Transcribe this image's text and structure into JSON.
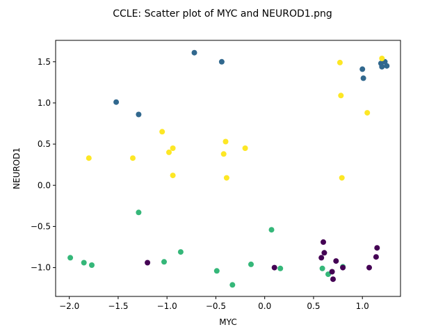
{
  "chart_data": {
    "type": "scatter",
    "title": "CCLE: Scatter plot of MYC and NEUROD1.png",
    "xlabel": "MYC",
    "ylabel": "NEUROD1",
    "xlim": [
      -2.14,
      1.39
    ],
    "ylim": [
      -1.35,
      1.76
    ],
    "xticks": [
      -2.0,
      -1.5,
      -1.0,
      -0.5,
      0.0,
      0.5,
      1.0
    ],
    "xtick_labels": [
      "−2.0",
      "−1.5",
      "−1.0",
      "−0.5",
      "0.0",
      "0.5",
      "1.0"
    ],
    "yticks": [
      -1.0,
      -0.5,
      0.0,
      0.5,
      1.0,
      1.5
    ],
    "ytick_labels": [
      "−1.0",
      "−0.5",
      "0.0",
      "0.5",
      "1.0",
      "1.5"
    ],
    "grid": false,
    "series": [
      {
        "color": "#31688e",
        "points": [
          [
            -0.72,
            1.61
          ],
          [
            -0.44,
            1.5
          ],
          [
            -1.52,
            1.01
          ],
          [
            -1.29,
            0.86
          ],
          [
            1.0,
            1.41
          ],
          [
            1.01,
            1.3
          ],
          [
            1.19,
            1.48
          ],
          [
            1.2,
            1.44
          ],
          [
            1.23,
            1.5
          ],
          [
            1.25,
            1.45
          ]
        ]
      },
      {
        "color": "#fde725",
        "points": [
          [
            0.77,
            1.49
          ],
          [
            1.2,
            1.54
          ],
          [
            0.78,
            1.09
          ],
          [
            1.05,
            0.88
          ],
          [
            -1.05,
            0.65
          ],
          [
            -0.94,
            0.45
          ],
          [
            -0.98,
            0.4
          ],
          [
            -0.4,
            0.53
          ],
          [
            -0.42,
            0.38
          ],
          [
            -0.2,
            0.45
          ],
          [
            -1.8,
            0.33
          ],
          [
            -1.35,
            0.33
          ],
          [
            -0.94,
            0.12
          ],
          [
            -0.39,
            0.09
          ],
          [
            0.79,
            0.09
          ]
        ]
      },
      {
        "color": "#35b779",
        "points": [
          [
            -1.99,
            -0.88
          ],
          [
            -1.85,
            -0.94
          ],
          [
            -1.77,
            -0.97
          ],
          [
            -1.29,
            -0.33
          ],
          [
            -1.03,
            -0.93
          ],
          [
            -0.86,
            -0.81
          ],
          [
            -0.49,
            -1.04
          ],
          [
            -0.33,
            -1.21
          ],
          [
            -0.14,
            -0.96
          ],
          [
            0.07,
            -0.54
          ],
          [
            0.16,
            -1.01
          ],
          [
            0.59,
            -1.01
          ],
          [
            0.65,
            -1.08
          ],
          [
            0.8,
            -0.99
          ]
        ]
      },
      {
        "color": "#440154",
        "points": [
          [
            -1.2,
            -0.94
          ],
          [
            0.1,
            -1.0
          ],
          [
            0.58,
            -0.88
          ],
          [
            0.6,
            -0.69
          ],
          [
            0.61,
            -0.82
          ],
          [
            0.69,
            -1.05
          ],
          [
            0.7,
            -1.14
          ],
          [
            0.73,
            -0.92
          ],
          [
            0.8,
            -1.0
          ],
          [
            1.07,
            -1.0
          ],
          [
            1.14,
            -0.87
          ],
          [
            1.15,
            -0.76
          ]
        ]
      }
    ]
  }
}
